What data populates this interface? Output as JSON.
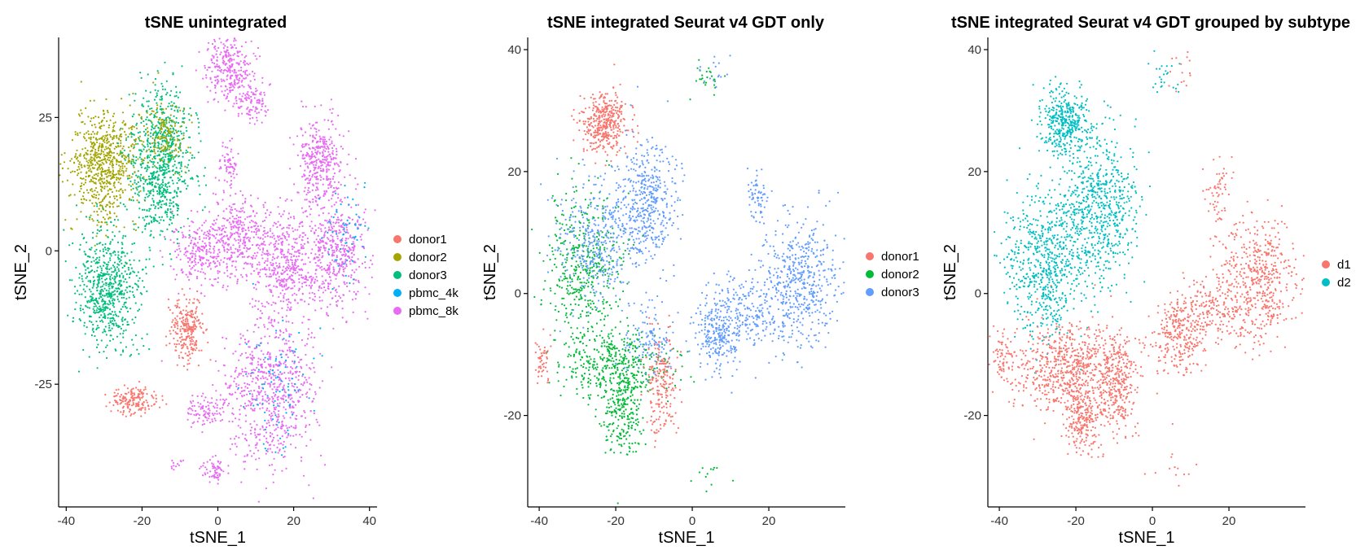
{
  "chart_data": [
    {
      "type": "scatter",
      "title": "tSNE unintegrated",
      "xlabel": "tSNE_1",
      "ylabel": "tSNE_2",
      "xlim": [
        -42,
        42
      ],
      "ylim": [
        -48,
        40
      ],
      "xticks": [
        -40,
        -20,
        0,
        20,
        40
      ],
      "xtick_labels": [
        "-40",
        "-20",
        "0",
        "20",
        "40"
      ],
      "yticks": [
        -25,
        0,
        25
      ],
      "ytick_labels": [
        "-25",
        "0",
        "25"
      ],
      "grid": false,
      "legend_position": "right",
      "series": [
        {
          "name": "donor1",
          "color": "#F8766D"
        },
        {
          "name": "donor2",
          "color": "#A3A500"
        },
        {
          "name": "donor3",
          "color": "#00BF7D"
        },
        {
          "name": "pbmc_4k",
          "color": "#00B0F6"
        },
        {
          "name": "pbmc_8k",
          "color": "#E76BF3"
        }
      ],
      "clusters": [
        {
          "series": 1,
          "cx": -30,
          "cy": 16,
          "sx": 4.5,
          "sy": 5,
          "n": 700
        },
        {
          "series": 2,
          "cx": -15,
          "cy": 17,
          "sx": 4,
          "sy": 7,
          "n": 800
        },
        {
          "series": 1,
          "cx": -14,
          "cy": 22,
          "sx": 3,
          "sy": 3,
          "n": 150
        },
        {
          "series": 2,
          "cx": -29,
          "cy": -7,
          "sx": 4,
          "sy": 5.5,
          "n": 650
        },
        {
          "series": 0,
          "cx": -8,
          "cy": -15,
          "sx": 2.2,
          "sy": 3,
          "n": 250
        },
        {
          "series": 0,
          "cx": -22,
          "cy": -28,
          "sx": 3,
          "sy": 1.3,
          "n": 170
        },
        {
          "series": 4,
          "cx": 3,
          "cy": 34,
          "sx": 3,
          "sy": 3,
          "n": 300
        },
        {
          "series": 4,
          "cx": 9,
          "cy": 28,
          "sx": 2,
          "sy": 2,
          "n": 100
        },
        {
          "series": 4,
          "cx": 3,
          "cy": 16,
          "sx": 1.2,
          "sy": 2,
          "n": 60
        },
        {
          "series": 4,
          "cx": 27,
          "cy": 17,
          "sx": 3,
          "sy": 4,
          "n": 350
        },
        {
          "series": 4,
          "cx": -4,
          "cy": 0,
          "sx": 4,
          "sy": 3,
          "n": 280
        },
        {
          "series": 4,
          "cx": 5,
          "cy": 3,
          "sx": 3,
          "sy": 4,
          "n": 250
        },
        {
          "series": 4,
          "cx": 18,
          "cy": -2,
          "sx": 5,
          "sy": 5,
          "n": 500
        },
        {
          "series": 4,
          "cx": 31,
          "cy": 0,
          "sx": 4,
          "sy": 5,
          "n": 450
        },
        {
          "series": 3,
          "cx": 33,
          "cy": 3,
          "sx": 3,
          "sy": 4,
          "n": 60
        },
        {
          "series": 4,
          "cx": 14,
          "cy": -26,
          "sx": 6,
          "sy": 7,
          "n": 700
        },
        {
          "series": 3,
          "cx": 16,
          "cy": -25,
          "sx": 5,
          "sy": 6,
          "n": 90
        },
        {
          "series": 4,
          "cx": -3,
          "cy": -30,
          "sx": 2.5,
          "sy": 1.5,
          "n": 100
        },
        {
          "series": 4,
          "cx": -1,
          "cy": -41,
          "sx": 1.5,
          "sy": 1,
          "n": 60
        },
        {
          "series": 4,
          "cx": -11,
          "cy": -40,
          "sx": 0.8,
          "sy": 0.6,
          "n": 12
        }
      ]
    },
    {
      "type": "scatter",
      "title": "tSNE integrated Seurat v4 GDT only",
      "xlabel": "tSNE_1",
      "ylabel": "tSNE_2",
      "xlim": [
        -43,
        40
      ],
      "ylim": [
        -35,
        42
      ],
      "xticks": [
        -40,
        -20,
        0,
        20
      ],
      "xtick_labels": [
        "-40",
        "-20",
        "0",
        "20"
      ],
      "yticks": [
        -20,
        0,
        20,
        40
      ],
      "ytick_labels": [
        "-20",
        "0",
        "20",
        "40"
      ],
      "grid": false,
      "legend_position": "right",
      "series": [
        {
          "name": "donor1",
          "color": "#F8766D"
        },
        {
          "name": "donor2",
          "color": "#00BA38"
        },
        {
          "name": "donor3",
          "color": "#619CFF"
        }
      ],
      "clusters": [
        {
          "series": 0,
          "cx": -23,
          "cy": 28,
          "sx": 3,
          "sy": 2.5,
          "n": 400
        },
        {
          "series": 2,
          "cx": -12,
          "cy": 15,
          "sx": 4,
          "sy": 5,
          "n": 450
        },
        {
          "series": 1,
          "cx": -28,
          "cy": 5,
          "sx": 5,
          "sy": 6,
          "n": 450
        },
        {
          "series": 2,
          "cx": -25,
          "cy": 8,
          "sx": 5,
          "sy": 5,
          "n": 350
        },
        {
          "series": 1,
          "cx": -20,
          "cy": -12,
          "sx": 7,
          "sy": 3,
          "n": 450
        },
        {
          "series": 1,
          "cx": -18,
          "cy": -20,
          "sx": 2.5,
          "sy": 3,
          "n": 200
        },
        {
          "series": 2,
          "cx": -11,
          "cy": -8,
          "sx": 3,
          "sy": 3,
          "n": 120
        },
        {
          "series": 0,
          "cx": -8,
          "cy": -15,
          "sx": 2,
          "sy": 4,
          "n": 200
        },
        {
          "series": 0,
          "cx": -39,
          "cy": -11,
          "sx": 1.2,
          "sy": 2,
          "n": 50
        },
        {
          "series": 2,
          "cx": 17,
          "cy": 16,
          "sx": 1.5,
          "sy": 3,
          "n": 60
        },
        {
          "series": 2,
          "cx": 28,
          "cy": 2,
          "sx": 5,
          "sy": 5,
          "n": 500
        },
        {
          "series": 2,
          "cx": 7,
          "cy": -7,
          "sx": 3,
          "sy": 3,
          "n": 250
        },
        {
          "series": 2,
          "cx": 15,
          "cy": -3,
          "sx": 5,
          "sy": 3,
          "n": 200
        },
        {
          "series": 1,
          "cx": 4,
          "cy": 36,
          "sx": 2,
          "sy": 1.5,
          "n": 25
        },
        {
          "series": 2,
          "cx": 6,
          "cy": 36,
          "sx": 2,
          "sy": 1.5,
          "n": 15
        },
        {
          "series": 1,
          "cx": 6,
          "cy": -30,
          "sx": 3,
          "sy": 1.5,
          "n": 12
        }
      ]
    },
    {
      "type": "scatter",
      "title": "tSNE integrated Seurat v4 GDT grouped by subtype",
      "xlabel": "tSNE_1",
      "ylabel": "tSNE_2",
      "xlim": [
        -43,
        40
      ],
      "ylim": [
        -35,
        42
      ],
      "xticks": [
        -40,
        -20,
        0,
        20
      ],
      "xtick_labels": [
        "-40",
        "-20",
        "0",
        "20"
      ],
      "yticks": [
        -20,
        0,
        20,
        40
      ],
      "ytick_labels": [
        "-20",
        "0",
        "20",
        "40"
      ],
      "grid": false,
      "legend_position": "right",
      "series": [
        {
          "name": "d1",
          "color": "#F8766D"
        },
        {
          "name": "d2",
          "color": "#00BFC4"
        }
      ],
      "clusters": [
        {
          "series": 1,
          "cx": -23,
          "cy": 28,
          "sx": 3,
          "sy": 2.5,
          "n": 400
        },
        {
          "series": 1,
          "cx": -14,
          "cy": 14,
          "sx": 5,
          "sy": 6,
          "n": 650
        },
        {
          "series": 1,
          "cx": -28,
          "cy": 5,
          "sx": 5,
          "sy": 6,
          "n": 650
        },
        {
          "series": 0,
          "cx": -22,
          "cy": -12,
          "sx": 8,
          "sy": 3.5,
          "n": 700
        },
        {
          "series": 0,
          "cx": -18,
          "cy": -20,
          "sx": 2.5,
          "sy": 3,
          "n": 250
        },
        {
          "series": 0,
          "cx": -9,
          "cy": -15,
          "sx": 2,
          "sy": 4,
          "n": 250
        },
        {
          "series": 0,
          "cx": -39,
          "cy": -11,
          "sx": 1.2,
          "sy": 2,
          "n": 50
        },
        {
          "series": 0,
          "cx": 17,
          "cy": 16,
          "sx": 1.5,
          "sy": 3,
          "n": 60
        },
        {
          "series": 0,
          "cx": 28,
          "cy": 2,
          "sx": 5,
          "sy": 5,
          "n": 500
        },
        {
          "series": 0,
          "cx": 7,
          "cy": -7,
          "sx": 3,
          "sy": 3,
          "n": 250
        },
        {
          "series": 0,
          "cx": 15,
          "cy": -3,
          "sx": 5,
          "sy": 3,
          "n": 200
        },
        {
          "series": 1,
          "cx": 3,
          "cy": 36,
          "sx": 2,
          "sy": 1.5,
          "n": 25
        },
        {
          "series": 0,
          "cx": 7,
          "cy": 36,
          "sx": 2,
          "sy": 1.5,
          "n": 15
        },
        {
          "series": 0,
          "cx": 6,
          "cy": -29,
          "sx": 3,
          "sy": 1.5,
          "n": 12
        }
      ]
    }
  ]
}
